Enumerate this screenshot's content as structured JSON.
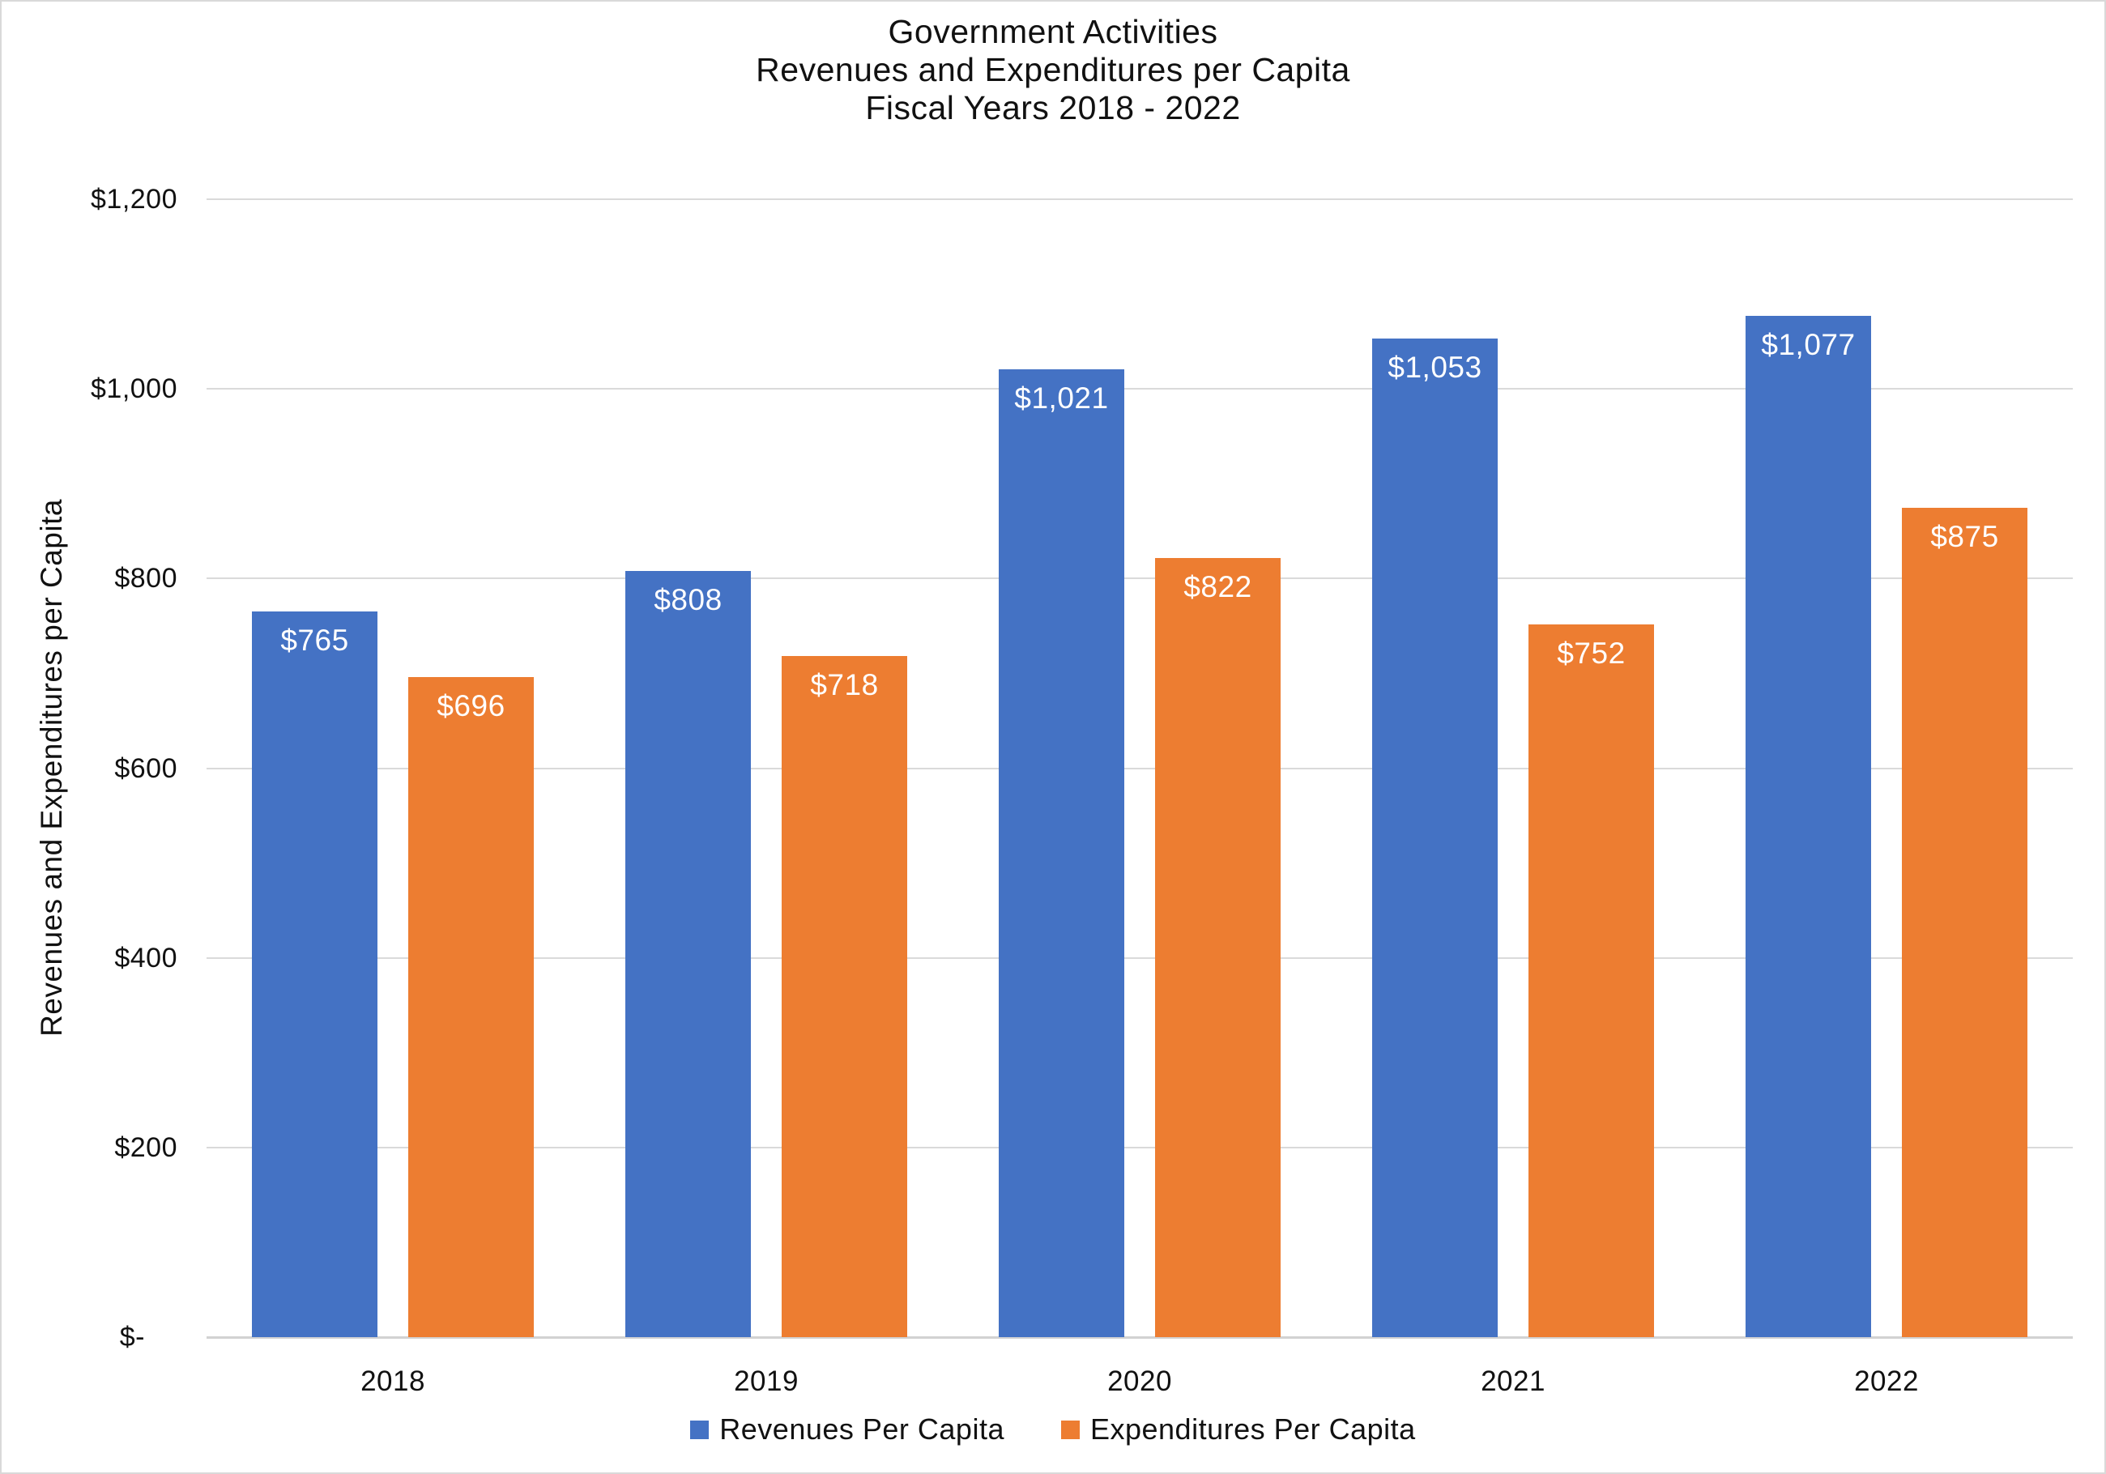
{
  "chart_data": {
    "type": "bar",
    "title_lines": [
      "Government Activities",
      "Revenues and Expenditures per Capita",
      "Fiscal Years 2018 - 2022"
    ],
    "categories": [
      "2018",
      "2019",
      "2020",
      "2021",
      "2022"
    ],
    "series": [
      {
        "name": "Revenues Per Capita",
        "color": "#4472C4",
        "values": [
          765,
          808,
          1021,
          1053,
          1077
        ],
        "labels": [
          "$765",
          "$808",
          "$1,021",
          "$1,053",
          "$1,077"
        ]
      },
      {
        "name": "Expenditures Per Capita",
        "color": "#ED7D31",
        "values": [
          696,
          718,
          822,
          752,
          875
        ],
        "labels": [
          "$696",
          "$718",
          "$822",
          "$752",
          "$875"
        ]
      }
    ],
    "xlabel": "",
    "ylabel": "Revenues and Expenditures per Capita",
    "ylim": [
      0,
      1200
    ],
    "yticks": [
      {
        "label": "$1,200",
        "value": 1200
      },
      {
        "label": "$1,000",
        "value": 1000
      },
      {
        "label": "$800",
        "value": 800
      },
      {
        "label": "$600",
        "value": 600
      },
      {
        "label": "$400",
        "value": 400
      },
      {
        "label": "$200",
        "value": 200
      },
      {
        "label": "$-",
        "value": 0
      }
    ],
    "grid": "horizontal",
    "gridline_color": "#DADADA",
    "axis_line_color": "#D2D2D2",
    "data_label_color": "#FFFFFF",
    "legend_position": "bottom"
  }
}
